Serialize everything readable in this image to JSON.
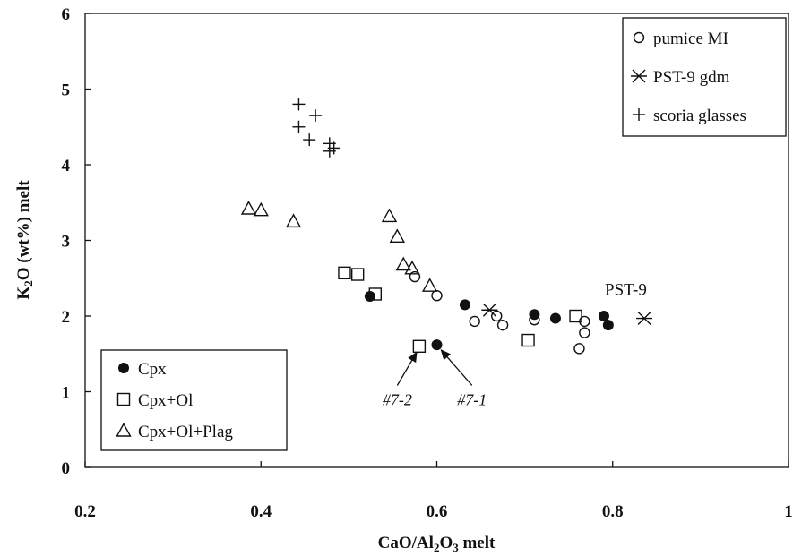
{
  "chart_data": {
    "type": "scatter",
    "xlabel": "CaO/Al2O3 melt",
    "xlabel_parts": [
      "CaO/Al",
      "2",
      "O",
      "3",
      " melt"
    ],
    "ylabel": "K2O (wt%) melt",
    "ylabel_parts": [
      "K",
      "2",
      "O (wt%) melt"
    ],
    "xlim": [
      0.2,
      1.0
    ],
    "ylim": [
      0,
      6
    ],
    "xticks": [
      "0.2",
      "0.4",
      "0.6",
      "0.8",
      "1"
    ],
    "yticks": [
      "0",
      "1",
      "2",
      "3",
      "4",
      "5",
      "6"
    ],
    "grid": false,
    "legends": [
      {
        "placement": "bottom-left",
        "entries": [
          {
            "marker": "filled-circle",
            "label": "Cpx"
          },
          {
            "marker": "open-square",
            "label": "Cpx+Ol"
          },
          {
            "marker": "open-triangle",
            "label": "Cpx+Ol+Plag"
          }
        ]
      },
      {
        "placement": "top-right",
        "entries": [
          {
            "marker": "open-circle",
            "label": "pumice MI"
          },
          {
            "marker": "x-cross",
            "label": "PST-9 gdm"
          },
          {
            "marker": "plus",
            "label": "scoria glasses"
          }
        ]
      }
    ],
    "series": [
      {
        "name": "Cpx",
        "marker": "filled-circle",
        "points": [
          [
            0.524,
            2.26
          ],
          [
            0.632,
            2.15
          ],
          [
            0.711,
            2.02
          ],
          [
            0.735,
            1.97
          ],
          [
            0.79,
            2.0
          ],
          [
            0.795,
            1.88
          ],
          [
            0.6,
            1.62
          ]
        ]
      },
      {
        "name": "Cpx+Ol",
        "marker": "open-square",
        "points": [
          [
            0.495,
            2.57
          ],
          [
            0.51,
            2.55
          ],
          [
            0.53,
            2.29
          ],
          [
            0.704,
            1.68
          ],
          [
            0.758,
            2.0
          ],
          [
            0.58,
            1.6
          ]
        ]
      },
      {
        "name": "Cpx+Ol+Plag",
        "marker": "open-triangle",
        "points": [
          [
            0.386,
            3.42
          ],
          [
            0.4,
            3.4
          ],
          [
            0.437,
            3.25
          ],
          [
            0.546,
            3.32
          ],
          [
            0.555,
            3.05
          ],
          [
            0.562,
            2.68
          ],
          [
            0.572,
            2.63
          ],
          [
            0.592,
            2.4
          ]
        ]
      },
      {
        "name": "pumice MI",
        "marker": "open-circle",
        "points": [
          [
            0.575,
            2.52
          ],
          [
            0.6,
            2.27
          ],
          [
            0.643,
            1.93
          ],
          [
            0.668,
            2.0
          ],
          [
            0.675,
            1.88
          ],
          [
            0.711,
            1.95
          ],
          [
            0.762,
            1.57
          ],
          [
            0.768,
            1.78
          ],
          [
            0.768,
            1.93
          ]
        ]
      },
      {
        "name": "PST-9 gdm",
        "marker": "x-cross",
        "points": [
          [
            0.66,
            2.08
          ],
          [
            0.836,
            1.97
          ]
        ]
      },
      {
        "name": "scoria glasses",
        "marker": "plus",
        "points": [
          [
            0.443,
            4.8
          ],
          [
            0.443,
            4.5
          ],
          [
            0.462,
            4.65
          ],
          [
            0.455,
            4.33
          ],
          [
            0.478,
            4.28
          ],
          [
            0.478,
            4.18
          ],
          [
            0.483,
            4.22
          ]
        ]
      }
    ],
    "annotations": [
      {
        "text": "#7-2",
        "x": 0.555,
        "y": 0.87,
        "arrow_to": [
          0.577,
          1.52
        ]
      },
      {
        "text": "#7-1",
        "x": 0.64,
        "y": 0.87,
        "arrow_to": [
          0.605,
          1.55
        ]
      },
      {
        "text": "PST-9",
        "x": 0.815,
        "y": 2.28
      }
    ]
  }
}
